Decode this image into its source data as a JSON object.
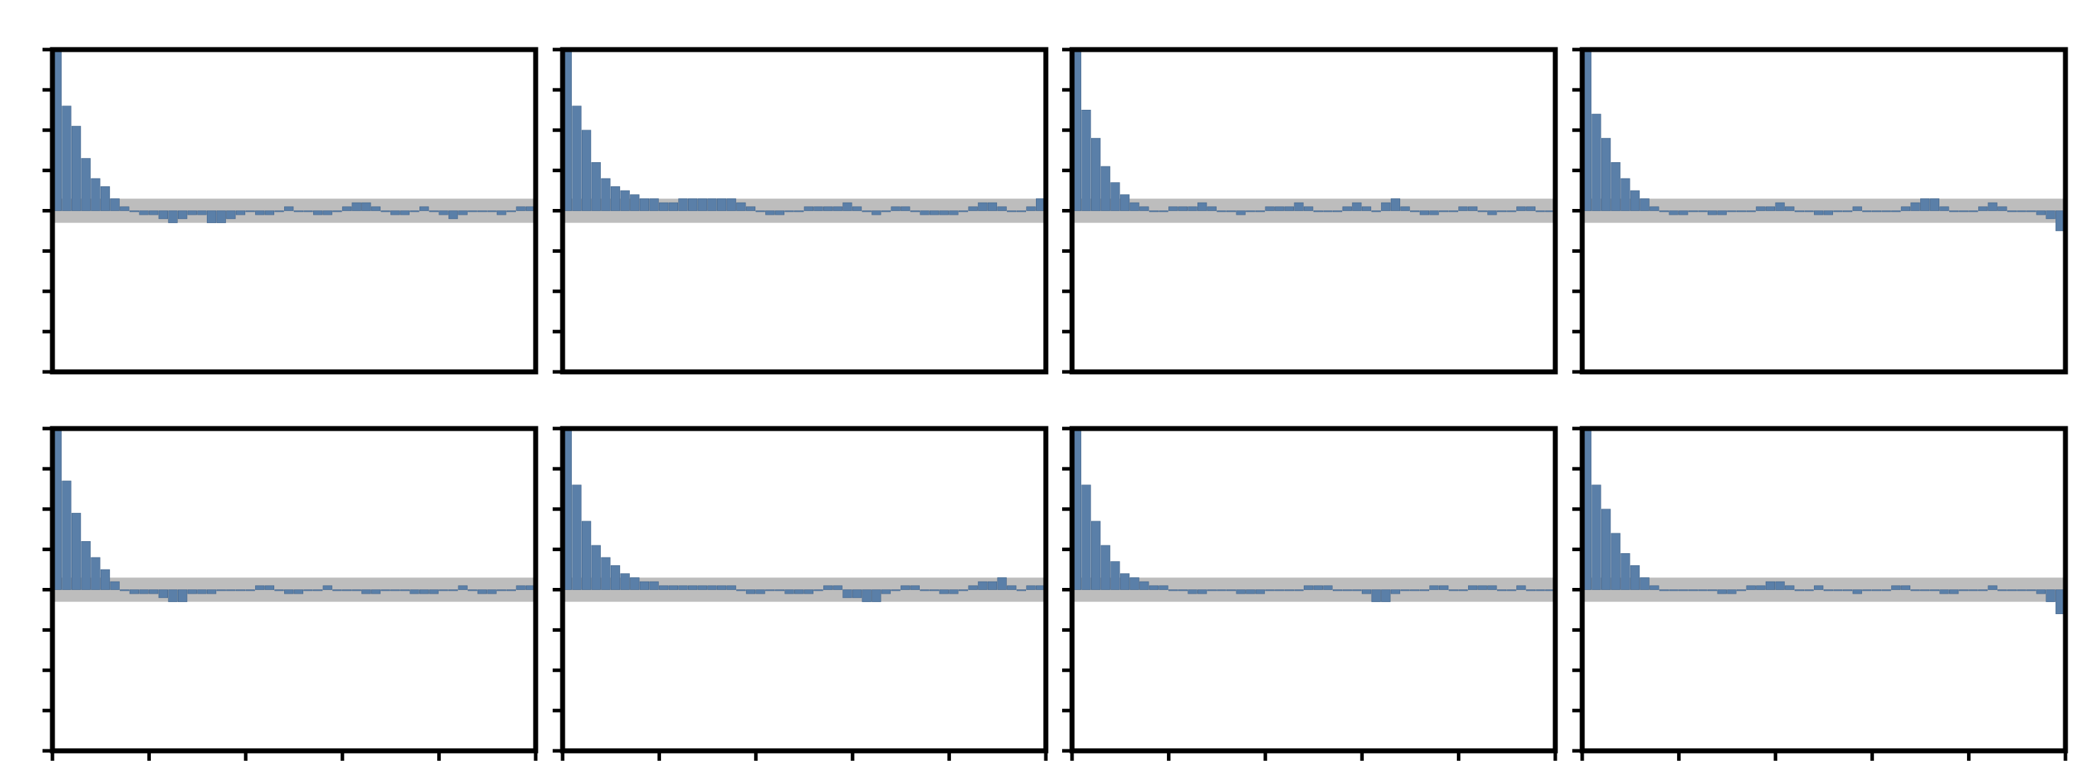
{
  "figure": {
    "colors": {
      "bar": "#5a7fa8",
      "bar_edge": "#40638a",
      "band": "#bdbdbd",
      "frame": "#000000"
    }
  },
  "chart_data": [
    {
      "type": "bar",
      "title": "",
      "xlabel": "",
      "ylabel": "",
      "xlim": [
        0,
        50
      ],
      "ylim": [
        -0.4,
        0.4
      ],
      "grid": false,
      "series": [
        {
          "values": [
            0.4,
            0.26,
            0.21,
            0.13,
            0.08,
            0.06,
            0.03,
            0.01,
            0.0,
            -0.01,
            -0.01,
            -0.02,
            -0.03,
            -0.02,
            -0.01,
            -0.01,
            -0.03,
            -0.03,
            -0.02,
            -0.01,
            0.0,
            -0.01,
            -0.01,
            0.0,
            0.01,
            0.0,
            0.0,
            -0.01,
            -0.01,
            0.0,
            0.01,
            0.02,
            0.02,
            0.01,
            0.0,
            -0.01,
            -0.01,
            0.0,
            0.01,
            0.0,
            -0.01,
            -0.02,
            -0.01,
            0.0,
            0.0,
            0.0,
            -0.01,
            0.0,
            0.01,
            0.01
          ]
        }
      ]
    },
    {
      "type": "bar",
      "title": "",
      "xlabel": "",
      "ylabel": "",
      "xlim": [
        0,
        50
      ],
      "ylim": [
        -0.4,
        0.4
      ],
      "grid": false,
      "series": [
        {
          "values": [
            0.4,
            0.26,
            0.2,
            0.12,
            0.08,
            0.06,
            0.05,
            0.04,
            0.03,
            0.03,
            0.02,
            0.02,
            0.03,
            0.03,
            0.03,
            0.03,
            0.03,
            0.03,
            0.02,
            0.01,
            0.0,
            -0.01,
            -0.01,
            0.0,
            0.0,
            0.01,
            0.01,
            0.01,
            0.01,
            0.02,
            0.01,
            0.0,
            -0.01,
            0.0,
            0.01,
            0.01,
            0.0,
            -0.01,
            -0.01,
            -0.01,
            -0.01,
            0.0,
            0.01,
            0.02,
            0.02,
            0.01,
            0.0,
            0.0,
            0.01,
            0.03
          ]
        }
      ]
    },
    {
      "type": "bar",
      "title": "",
      "xlabel": "",
      "ylabel": "",
      "xlim": [
        0,
        50
      ],
      "ylim": [
        -0.4,
        0.4
      ],
      "grid": false,
      "series": [
        {
          "values": [
            0.4,
            0.25,
            0.18,
            0.11,
            0.07,
            0.04,
            0.02,
            0.01,
            0.0,
            0.0,
            0.01,
            0.01,
            0.01,
            0.02,
            0.01,
            0.0,
            0.0,
            -0.01,
            0.0,
            0.0,
            0.01,
            0.01,
            0.01,
            0.02,
            0.01,
            0.0,
            0.0,
            0.0,
            0.01,
            0.02,
            0.01,
            0.0,
            0.02,
            0.03,
            0.01,
            0.0,
            -0.01,
            -0.01,
            0.0,
            0.0,
            0.01,
            0.01,
            0.0,
            -0.01,
            0.0,
            0.0,
            0.01,
            0.01,
            0.0,
            0.0
          ]
        }
      ]
    },
    {
      "type": "bar",
      "title": "",
      "xlabel": "",
      "ylabel": "",
      "xlim": [
        0,
        50
      ],
      "ylim": [
        -0.4,
        0.4
      ],
      "grid": false,
      "series": [
        {
          "values": [
            0.4,
            0.24,
            0.18,
            0.12,
            0.08,
            0.05,
            0.03,
            0.01,
            0.0,
            -0.01,
            -0.01,
            0.0,
            0.0,
            -0.01,
            -0.01,
            0.0,
            0.0,
            0.0,
            0.01,
            0.01,
            0.02,
            0.01,
            0.0,
            0.0,
            -0.01,
            -0.01,
            0.0,
            0.0,
            0.01,
            0.0,
            0.0,
            0.0,
            0.0,
            0.01,
            0.02,
            0.03,
            0.03,
            0.01,
            0.0,
            0.0,
            0.0,
            0.01,
            0.02,
            0.01,
            0.0,
            0.0,
            0.0,
            -0.01,
            -0.02,
            -0.05
          ]
        }
      ]
    },
    {
      "type": "bar",
      "title": "",
      "xlabel": "",
      "ylabel": "",
      "xlim": [
        0,
        50
      ],
      "ylim": [
        -0.4,
        0.4
      ],
      "grid": false,
      "series": [
        {
          "values": [
            0.4,
            0.27,
            0.19,
            0.12,
            0.08,
            0.05,
            0.02,
            0.0,
            -0.01,
            -0.01,
            -0.01,
            -0.02,
            -0.03,
            -0.03,
            -0.01,
            -0.01,
            -0.01,
            0.0,
            0.0,
            0.0,
            0.0,
            0.01,
            0.01,
            0.0,
            -0.01,
            -0.01,
            0.0,
            0.0,
            0.01,
            0.0,
            0.0,
            0.0,
            -0.01,
            -0.01,
            0.0,
            0.0,
            0.0,
            -0.01,
            -0.01,
            -0.01,
            0.0,
            0.0,
            0.01,
            0.0,
            -0.01,
            -0.01,
            0.0,
            0.0,
            0.01,
            0.01
          ]
        }
      ]
    },
    {
      "type": "bar",
      "title": "",
      "xlabel": "",
      "ylabel": "",
      "xlim": [
        0,
        50
      ],
      "ylim": [
        -0.4,
        0.4
      ],
      "grid": false,
      "series": [
        {
          "values": [
            0.4,
            0.26,
            0.17,
            0.11,
            0.08,
            0.06,
            0.04,
            0.03,
            0.02,
            0.02,
            0.01,
            0.01,
            0.01,
            0.01,
            0.01,
            0.01,
            0.01,
            0.01,
            0.0,
            -0.01,
            -0.01,
            0.0,
            0.0,
            -0.01,
            -0.01,
            -0.01,
            0.0,
            0.01,
            0.01,
            -0.02,
            -0.02,
            -0.03,
            -0.03,
            -0.01,
            0.0,
            0.01,
            0.01,
            0.0,
            0.0,
            -0.01,
            -0.01,
            0.0,
            0.01,
            0.02,
            0.02,
            0.03,
            0.01,
            0.0,
            0.01,
            0.01
          ]
        }
      ]
    },
    {
      "type": "bar",
      "title": "",
      "xlabel": "",
      "ylabel": "",
      "xlim": [
        0,
        50
      ],
      "ylim": [
        -0.4,
        0.4
      ],
      "grid": false,
      "series": [
        {
          "values": [
            0.4,
            0.26,
            0.17,
            0.11,
            0.07,
            0.04,
            0.03,
            0.02,
            0.01,
            0.01,
            0.0,
            0.0,
            -0.01,
            -0.01,
            0.0,
            0.0,
            0.0,
            -0.01,
            -0.01,
            -0.01,
            0.0,
            0.0,
            0.0,
            0.0,
            0.01,
            0.01,
            0.01,
            0.0,
            0.0,
            0.0,
            -0.01,
            -0.03,
            -0.03,
            -0.01,
            0.0,
            0.0,
            0.0,
            0.01,
            0.01,
            0.0,
            0.0,
            0.01,
            0.01,
            0.01,
            0.0,
            0.0,
            0.01,
            0.0,
            0.0,
            0.0
          ]
        }
      ]
    },
    {
      "type": "bar",
      "title": "",
      "xlabel": "",
      "ylabel": "",
      "xlim": [
        0,
        50
      ],
      "ylim": [
        -0.4,
        0.4
      ],
      "grid": false,
      "series": [
        {
          "values": [
            0.4,
            0.26,
            0.2,
            0.14,
            0.09,
            0.06,
            0.03,
            0.01,
            0.0,
            0.0,
            0.0,
            0.0,
            0.0,
            0.0,
            -0.01,
            -0.01,
            0.0,
            0.01,
            0.01,
            0.02,
            0.02,
            0.01,
            0.0,
            0.0,
            0.01,
            0.0,
            0.0,
            0.0,
            -0.01,
            0.0,
            0.0,
            0.0,
            0.01,
            0.01,
            0.0,
            0.0,
            0.0,
            -0.01,
            -0.01,
            0.0,
            0.0,
            0.0,
            0.01,
            0.0,
            0.0,
            0.0,
            0.0,
            -0.01,
            -0.03,
            -0.06
          ]
        }
      ]
    }
  ]
}
